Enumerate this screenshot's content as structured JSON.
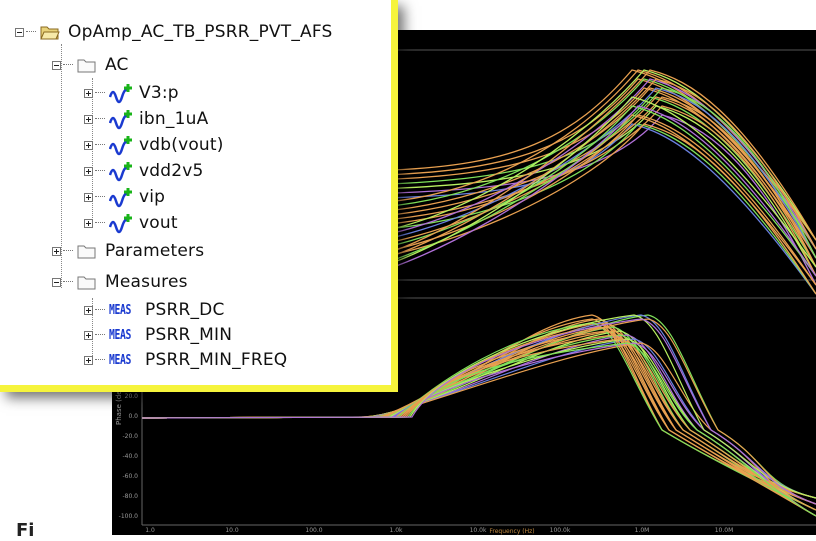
{
  "tree": {
    "root": "OpAmp_AC_TB_PSRR_PVT_AFS",
    "ac_folder": "AC",
    "signals": [
      "V3:p",
      "ibn_1uA",
      "vdb(vout)",
      "vdd2v5",
      "vip",
      "vout"
    ],
    "parameters_folder": "Parameters",
    "measures_folder": "Measures",
    "meas_tag": "MEAS",
    "measures": [
      "PSRR_DC",
      "PSRR_MIN",
      "PSRR_MIN_FREQ"
    ]
  },
  "plot": {
    "phase_ylabel": "Phase (deg)",
    "xlabel": "Frequency (Hz)",
    "phase_ticks": [
      "20.0",
      "0.0",
      "-20.0",
      "-40.0",
      "-60.0",
      "-80.0",
      "-100.0"
    ],
    "x_ticks": [
      "1.0",
      "10.0",
      "100.0",
      "1.0k",
      "10.0k",
      "100.0k",
      "1.0M",
      "10.0M"
    ],
    "colors": {
      "green": "#7fe05a",
      "lime": "#b8f060",
      "orange": "#e8a050",
      "purple": "#b070d8",
      "blue": "#6a80e0",
      "background": "#000000"
    }
  },
  "caption": "Fi"
}
